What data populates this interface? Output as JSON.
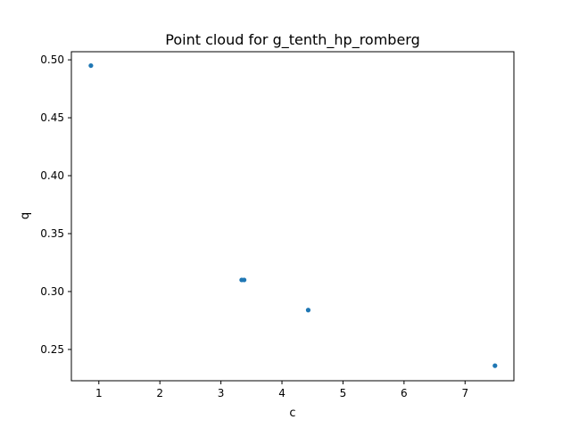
{
  "chart_data": {
    "type": "scatter",
    "title": "Point cloud for g_tenth_hp_romberg",
    "xlabel": "c",
    "ylabel": "q",
    "xlim": [
      0.55,
      7.8
    ],
    "ylim": [
      0.223,
      0.507
    ],
    "x_ticks": [
      1,
      2,
      3,
      4,
      5,
      6,
      7
    ],
    "y_ticks": [
      0.25,
      0.3,
      0.35,
      0.4,
      0.45,
      0.5
    ],
    "x_tick_labels": [
      "1",
      "2",
      "3",
      "4",
      "5",
      "6",
      "7"
    ],
    "y_tick_labels": [
      "0.25",
      "0.30",
      "0.35",
      "0.40",
      "0.45",
      "0.50"
    ],
    "grid": false,
    "marker_color": "#1f77b4",
    "series": [
      {
        "points": [
          {
            "x": 0.87,
            "y": 0.495
          },
          {
            "x": 3.34,
            "y": 0.31
          },
          {
            "x": 3.38,
            "y": 0.31
          },
          {
            "x": 4.43,
            "y": 0.284
          },
          {
            "x": 7.49,
            "y": 0.236
          }
        ]
      }
    ]
  }
}
